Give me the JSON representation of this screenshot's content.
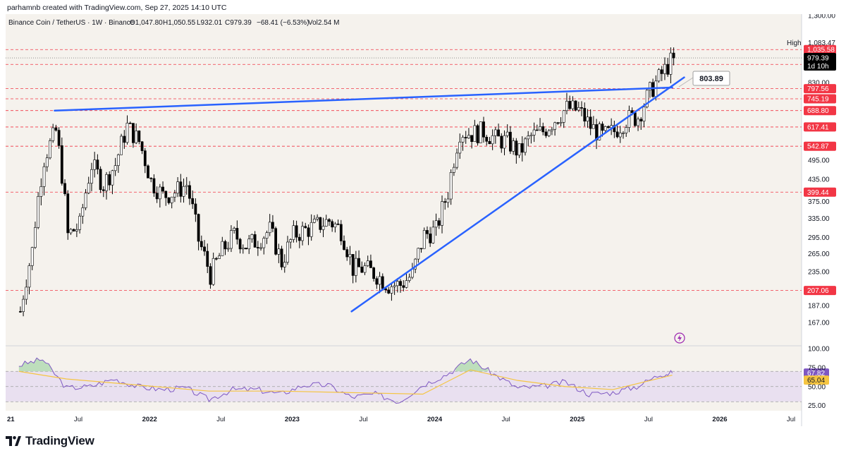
{
  "header": {
    "credit": "parhamnb created with TradingView.com, Sep 27, 2025 14:10 UTC"
  },
  "legend": {
    "symbol": "Binance Coin / TetherUS · 1W · Binance",
    "open": "O1,047.80",
    "high": "H1,050.55",
    "low": "L932.01",
    "close": "C979.39",
    "change": "−68.41 (−6.53%)",
    "volume": "Vol2.54 M"
  },
  "brand": {
    "name": "TradingView",
    "icon": "tradingview-logo-icon"
  },
  "colors": {
    "background": "#f5f2ed",
    "up": "#ffffff",
    "down": "#000000",
    "trendline": "#2962ff",
    "level_line": "#f23645",
    "rsi_line": "#7e57c2",
    "rsi_ma": "#f5c542",
    "rsi_band": "#e9e0f0",
    "rsi_overbought_fill": "#a5d6a7"
  },
  "chart_data": [
    {
      "type": "candlestick",
      "scale": "log",
      "interval": "1W",
      "ylim": [
        150,
        1300
      ],
      "y_ticks": [
        "1,300.00",
        "830.00",
        "495.00",
        "435.00",
        "375.00",
        "335.00",
        "295.00",
        "265.00",
        "235.00",
        "187.00",
        "167.00"
      ],
      "x_ticks": [
        "21",
        "Jul",
        "2022",
        "Jul",
        "2023",
        "Jul",
        "2024",
        "Jul",
        "2025",
        "Jul",
        "2026",
        "Jul"
      ],
      "high_label": "High",
      "high_value": "1,083.47",
      "last_price": "979.39",
      "countdown": "1d 10h",
      "levels": [
        "1,035.58",
        "937.80",
        "797.56",
        "745.19",
        "688.80",
        "617.41",
        "542.87",
        "399.44",
        "207.06"
      ],
      "annotation": "803.89",
      "series": [
        {
          "x": [
            "2021-02",
            "2021-03",
            "2021-04",
            "2021-05",
            "2021-06",
            "2021-07",
            "2021-08",
            "2021-09",
            "2021-10",
            "2021-11",
            "2021-12",
            "2022-01",
            "2022-02",
            "2022-03",
            "2022-04",
            "2022-05",
            "2022-06",
            "2022-07",
            "2022-08",
            "2022-09",
            "2022-10",
            "2022-11",
            "2022-12",
            "2023-01",
            "2023-02",
            "2023-03",
            "2023-04",
            "2023-05",
            "2023-06",
            "2023-07",
            "2023-08",
            "2023-09",
            "2023-10",
            "2023-11",
            "2023-12",
            "2024-01",
            "2024-02",
            "2024-03",
            "2024-04",
            "2024-05",
            "2024-06",
            "2024-07",
            "2024-08",
            "2024-09",
            "2024-10",
            "2024-11",
            "2024-12",
            "2025-01",
            "2025-02",
            "2025-03",
            "2025-04",
            "2025-05",
            "2025-06",
            "2025-07",
            "2025-08",
            "2025-09"
          ],
          "values": [
            180,
            270,
            500,
            600,
            300,
            320,
            480,
            420,
            480,
            620,
            560,
            430,
            390,
            400,
            420,
            290,
            230,
            270,
            300,
            280,
            290,
            310,
            250,
            300,
            310,
            320,
            330,
            310,
            240,
            240,
            230,
            215,
            215,
            230,
            300,
            310,
            400,
            600,
            590,
            600,
            570,
            560,
            520,
            580,
            600,
            650,
            700,
            690,
            620,
            580,
            600,
            650,
            660,
            780,
            880,
            979.39
          ]
        }
      ],
      "trendlines": [
        {
          "name": "resistance",
          "start": [
            "2021-05",
            688.8
          ],
          "end": [
            "2025-09",
            803.89
          ]
        },
        {
          "name": "support",
          "start": [
            "2023-06",
            180
          ],
          "end": [
            "2025-10",
            860
          ]
        }
      ]
    },
    {
      "type": "line",
      "name": "RSI",
      "ylim": [
        20,
        100
      ],
      "y_ticks": [
        "100.00",
        "75.00",
        "50.00",
        "25.00"
      ],
      "rsi_value": "67.82",
      "ma_value": "65.04",
      "bands": [
        70,
        30
      ],
      "series": [
        {
          "x": [
            "2021-02",
            "2021-04",
            "2021-06",
            "2021-08",
            "2021-10",
            "2021-12",
            "2022-02",
            "2022-04",
            "2022-06",
            "2022-08",
            "2022-10",
            "2022-12",
            "2023-02",
            "2023-04",
            "2023-06",
            "2023-08",
            "2023-10",
            "2023-12",
            "2024-02",
            "2024-04",
            "2024-06",
            "2024-08",
            "2024-10",
            "2024-12",
            "2025-02",
            "2025-04",
            "2025-06",
            "2025-08",
            "2025-09"
          ],
          "values": [
            78,
            86,
            48,
            50,
            60,
            50,
            46,
            48,
            33,
            46,
            46,
            40,
            52,
            52,
            36,
            40,
            30,
            52,
            66,
            86,
            66,
            48,
            50,
            56,
            40,
            42,
            50,
            66,
            67.82
          ]
        },
        {
          "x": [
            "2021-02",
            "2021-06",
            "2021-12",
            "2022-06",
            "2022-12",
            "2023-06",
            "2023-12",
            "2024-04",
            "2024-08",
            "2024-12",
            "2025-04",
            "2025-09"
          ],
          "values": [
            70,
            60,
            52,
            44,
            44,
            42,
            40,
            72,
            58,
            50,
            46,
            65.04
          ]
        }
      ]
    }
  ]
}
